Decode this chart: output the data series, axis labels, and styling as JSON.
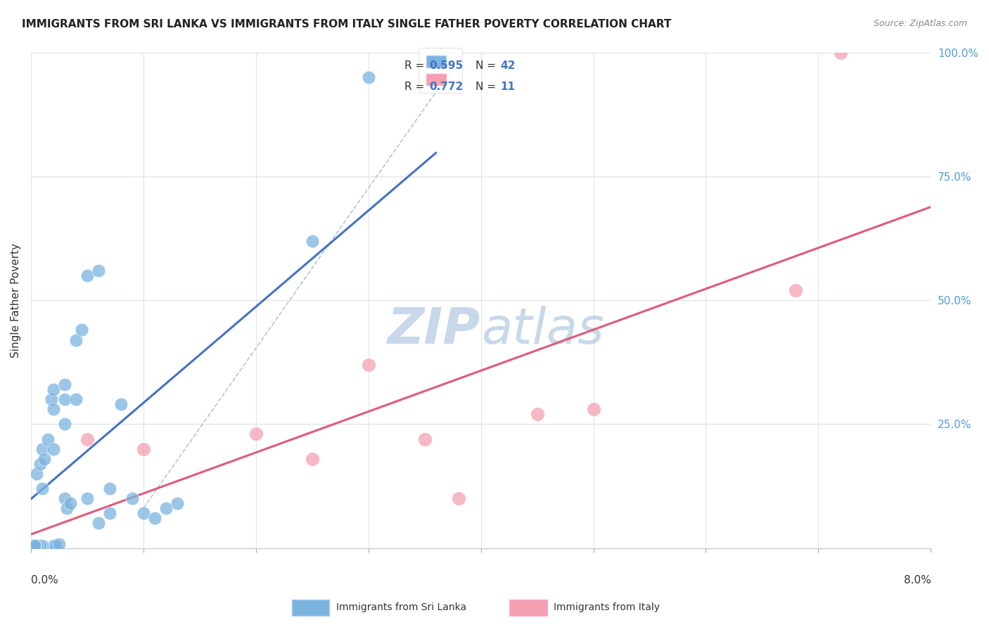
{
  "title": "IMMIGRANTS FROM SRI LANKA VS IMMIGRANTS FROM ITALY SINGLE FATHER POVERTY CORRELATION CHART",
  "source": "Source: ZipAtlas.com",
  "ylabel": "Single Father Poverty",
  "xmin": 0.0,
  "xmax": 0.08,
  "ymin": 0.0,
  "ymax": 1.0,
  "sri_lanka_R": 0.595,
  "sri_lanka_N": 42,
  "italy_R": 0.772,
  "italy_N": 11,
  "sri_lanka_color": "#7ab3e0",
  "italy_color": "#f4a0b0",
  "sri_lanka_line_color": "#4472c4",
  "italy_line_color": "#e05a7a",
  "ref_line_color": "#b8c4d0",
  "watermark_color": "#c8d8ea",
  "sri_lanka_x": [
    0.0005,
    0.0008,
    0.001,
    0.001,
    0.0012,
    0.0015,
    0.0018,
    0.002,
    0.002,
    0.002,
    0.0022,
    0.0025,
    0.003,
    0.003,
    0.003,
    0.0032,
    0.0035,
    0.004,
    0.004,
    0.0045,
    0.005,
    0.005,
    0.006,
    0.006,
    0.007,
    0.007,
    0.008,
    0.009,
    0.01,
    0.011,
    0.012,
    0.013,
    0.001,
    0.0008,
    0.0006,
    0.0004,
    0.0003,
    0.0003,
    0.025,
    0.03,
    0.002,
    0.003
  ],
  "sri_lanka_y": [
    0.15,
    0.17,
    0.12,
    0.2,
    0.18,
    0.22,
    0.3,
    0.28,
    0.32,
    0.005,
    0.005,
    0.008,
    0.33,
    0.3,
    0.1,
    0.08,
    0.09,
    0.42,
    0.3,
    0.44,
    0.55,
    0.1,
    0.56,
    0.05,
    0.07,
    0.12,
    0.29,
    0.1,
    0.07,
    0.06,
    0.08,
    0.09,
    0.005,
    0.005,
    0.005,
    0.005,
    0.003,
    0.005,
    0.62,
    0.95,
    0.2,
    0.25
  ],
  "italy_x": [
    0.005,
    0.01,
    0.02,
    0.025,
    0.03,
    0.035,
    0.038,
    0.045,
    0.05,
    0.068,
    0.072
  ],
  "italy_y": [
    0.22,
    0.2,
    0.23,
    0.18,
    0.37,
    0.22,
    0.1,
    0.27,
    0.28,
    0.52,
    1.0
  ],
  "background_color": "#ffffff",
  "grid_color": "#e0e4ea"
}
